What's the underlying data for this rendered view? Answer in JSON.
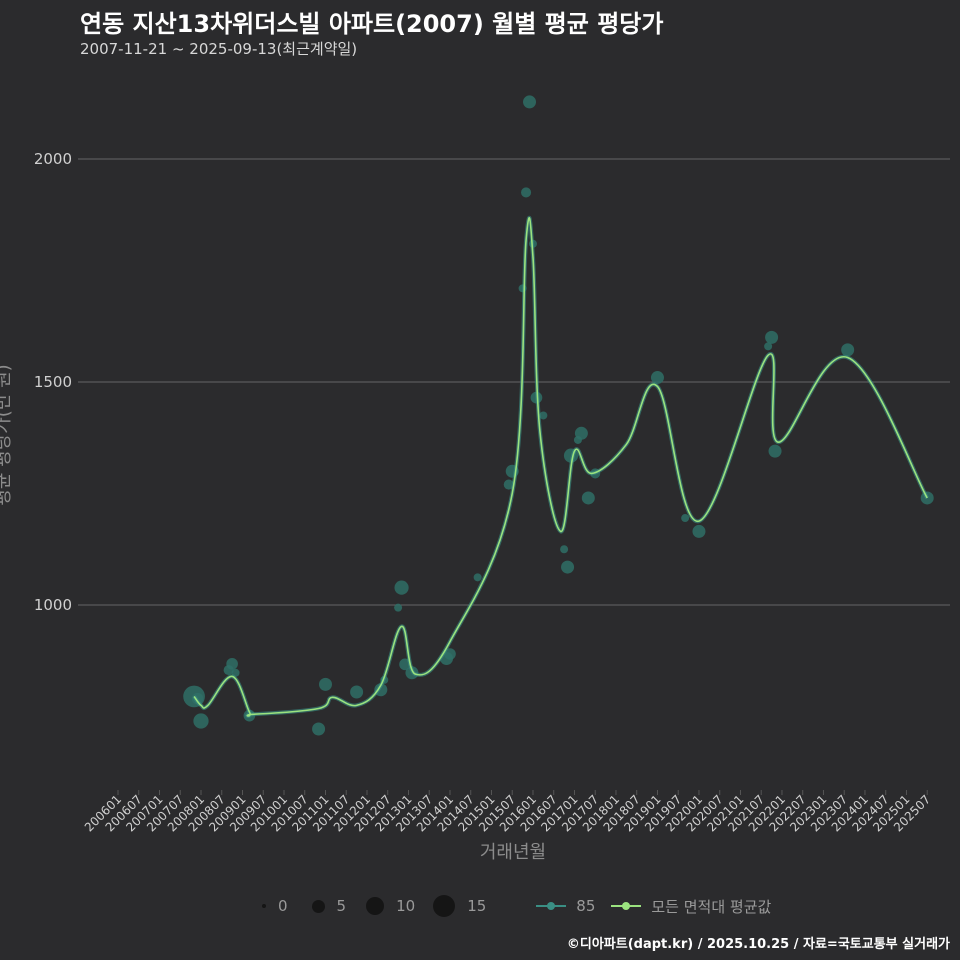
{
  "header": {
    "title": "연동 지산13차위더스빌 아파트(2007) 월별 평균 평당가",
    "subtitle": "2007-11-21 ~ 2025-09-13(최근계약일)"
  },
  "footer": {
    "credit": "©디아파트(dapt.kr) / 2025.10.25 / 자료=국토교통부 실거래가"
  },
  "colors": {
    "background": "#2b2b2d",
    "grid": "#666666",
    "series85": "#3a8f84",
    "avg_line": "#9be37f",
    "dots": "#2f6e66"
  },
  "legend": {
    "size_items": [
      {
        "label": "0",
        "value": 0
      },
      {
        "label": "5",
        "value": 5
      },
      {
        "label": "10",
        "value": 10
      },
      {
        "label": "15",
        "value": 15
      }
    ],
    "series_items": [
      {
        "label": "85",
        "color": "#3a8f84"
      },
      {
        "label": "모든 면적대 평균값",
        "color": "#9be37f"
      }
    ]
  },
  "chart_data": {
    "type": "scatter",
    "title": "연동 지산13차위더스빌 아파트(2007) 월별 평균 평당가",
    "xlabel": "거래년월",
    "ylabel": "평균 평당가(만 원)",
    "ylim": [
      740,
      2150
    ],
    "yticks": [
      1000,
      1500,
      2000
    ],
    "x_start": "2006-01",
    "x_end": "2025-07",
    "xticks": [
      "200601",
      "200607",
      "200701",
      "200707",
      "200801",
      "200807",
      "200901",
      "200907",
      "201001",
      "201007",
      "201101",
      "201107",
      "201201",
      "201207",
      "201301",
      "201307",
      "201401",
      "201407",
      "201501",
      "201507",
      "201601",
      "201607",
      "201701",
      "201707",
      "201801",
      "201807",
      "201901",
      "201907",
      "202001",
      "202007",
      "202101",
      "202107",
      "202201",
      "202207",
      "202301",
      "202307",
      "202401",
      "202407",
      "202501",
      "202507"
    ],
    "series": [
      {
        "name": "85",
        "kind": "scatter",
        "points": [
          {
            "x": "2007-11",
            "y": 795,
            "n": 14
          },
          {
            "x": "2007-12",
            "y": 790,
            "n": 3
          },
          {
            "x": "2008-01",
            "y": 740,
            "n": 6
          },
          {
            "x": "2008-09",
            "y": 854,
            "n": 2
          },
          {
            "x": "2008-10",
            "y": 868,
            "n": 3
          },
          {
            "x": "2008-11",
            "y": 848,
            "n": 1
          },
          {
            "x": "2009-03",
            "y": 752,
            "n": 3
          },
          {
            "x": "2010-11",
            "y": 722,
            "n": 4
          },
          {
            "x": "2011-01",
            "y": 822,
            "n": 4
          },
          {
            "x": "2011-10",
            "y": 805,
            "n": 4
          },
          {
            "x": "2012-05",
            "y": 810,
            "n": 4
          },
          {
            "x": "2012-06",
            "y": 832,
            "n": 1
          },
          {
            "x": "2012-10",
            "y": 994,
            "n": 1
          },
          {
            "x": "2012-11",
            "y": 1039,
            "n": 5
          },
          {
            "x": "2012-12",
            "y": 867,
            "n": 3
          },
          {
            "x": "2013-02",
            "y": 848,
            "n": 4
          },
          {
            "x": "2013-12",
            "y": 880,
            "n": 4
          },
          {
            "x": "2014-01",
            "y": 890,
            "n": 3
          },
          {
            "x": "2014-09",
            "y": 1062,
            "n": 1
          },
          {
            "x": "2015-06",
            "y": 1270,
            "n": 2
          },
          {
            "x": "2015-07",
            "y": 1300,
            "n": 4
          },
          {
            "x": "2015-10",
            "y": 1710,
            "n": 1
          },
          {
            "x": "2015-11",
            "y": 1925,
            "n": 2
          },
          {
            "x": "2015-12",
            "y": 2128,
            "n": 4
          },
          {
            "x": "2016-01",
            "y": 1810,
            "n": 1
          },
          {
            "x": "2016-02",
            "y": 1465,
            "n": 3
          },
          {
            "x": "2016-04",
            "y": 1425,
            "n": 1
          },
          {
            "x": "2016-10",
            "y": 1125,
            "n": 1
          },
          {
            "x": "2016-11",
            "y": 1085,
            "n": 4
          },
          {
            "x": "2016-12",
            "y": 1335,
            "n": 5
          },
          {
            "x": "2017-02",
            "y": 1370,
            "n": 1
          },
          {
            "x": "2017-03",
            "y": 1385,
            "n": 4
          },
          {
            "x": "2017-05",
            "y": 1240,
            "n": 4
          },
          {
            "x": "2017-07",
            "y": 1295,
            "n": 2
          },
          {
            "x": "2019-01",
            "y": 1510,
            "n": 4
          },
          {
            "x": "2019-09",
            "y": 1195,
            "n": 1
          },
          {
            "x": "2020-01",
            "y": 1165,
            "n": 4
          },
          {
            "x": "2021-09",
            "y": 1580,
            "n": 1
          },
          {
            "x": "2021-10",
            "y": 1600,
            "n": 4
          },
          {
            "x": "2021-11",
            "y": 1345,
            "n": 4
          },
          {
            "x": "2023-08",
            "y": 1572,
            "n": 4
          },
          {
            "x": "2025-07",
            "y": 1240,
            "n": 4
          }
        ]
      },
      {
        "name": "모든 면적대 평균값",
        "kind": "line",
        "points": [
          {
            "x": "2007-11",
            "y": 795
          },
          {
            "x": "2008-01",
            "y": 775
          },
          {
            "x": "2008-03",
            "y": 775
          },
          {
            "x": "2008-10",
            "y": 840
          },
          {
            "x": "2009-03",
            "y": 760
          },
          {
            "x": "2009-04",
            "y": 755
          },
          {
            "x": "2010-11",
            "y": 768
          },
          {
            "x": "2011-03",
            "y": 793
          },
          {
            "x": "2011-10",
            "y": 775
          },
          {
            "x": "2012-05",
            "y": 820
          },
          {
            "x": "2012-11",
            "y": 952
          },
          {
            "x": "2013-03",
            "y": 845
          },
          {
            "x": "2014-01",
            "y": 918
          },
          {
            "x": "2015-07",
            "y": 1250
          },
          {
            "x": "2015-11",
            "y": 1818
          },
          {
            "x": "2016-01",
            "y": 1780
          },
          {
            "x": "2016-03",
            "y": 1390
          },
          {
            "x": "2016-09",
            "y": 1165
          },
          {
            "x": "2017-01",
            "y": 1345
          },
          {
            "x": "2017-06",
            "y": 1295
          },
          {
            "x": "2018-04",
            "y": 1360
          },
          {
            "x": "2019-01",
            "y": 1490
          },
          {
            "x": "2020-01",
            "y": 1188
          },
          {
            "x": "2021-09",
            "y": 1560
          },
          {
            "x": "2021-12",
            "y": 1365
          },
          {
            "x": "2023-08",
            "y": 1555
          },
          {
            "x": "2025-07",
            "y": 1240
          }
        ]
      }
    ]
  }
}
